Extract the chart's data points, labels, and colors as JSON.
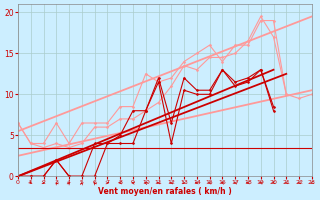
{
  "title": "",
  "xlabel": "Vent moyen/en rafales ( km/h )",
  "background_color": "#cceeff",
  "grid_color": "#aacccc",
  "xlim": [
    0,
    23
  ],
  "ylim": [
    0,
    21
  ],
  "yticks": [
    0,
    5,
    10,
    15,
    20
  ],
  "xticks": [
    0,
    1,
    2,
    3,
    4,
    5,
    6,
    7,
    8,
    9,
    10,
    11,
    12,
    13,
    14,
    15,
    16,
    17,
    18,
    19,
    20,
    21,
    22,
    23
  ],
  "red_line1": {
    "x": [
      0,
      1,
      2,
      3,
      4,
      5,
      6,
      7,
      8,
      9,
      10,
      11,
      12,
      13,
      14,
      15,
      16,
      17,
      18,
      19,
      20
    ],
    "y": [
      0,
      0,
      0,
      2,
      0,
      0,
      0,
      4,
      4,
      4,
      8,
      11.5,
      4,
      10.5,
      10,
      10,
      13,
      11,
      11.5,
      13,
      8
    ],
    "color": "#cc0000",
    "lw": 0.8,
    "marker": "D",
    "ms": 1.5
  },
  "red_line2": {
    "x": [
      0,
      1,
      2,
      3,
      4,
      5,
      6,
      7,
      8,
      9,
      10,
      11,
      12,
      13,
      14,
      15,
      16,
      17,
      18,
      19,
      20
    ],
    "y": [
      0,
      0,
      0,
      2,
      0,
      0,
      4,
      4,
      5,
      8,
      8,
      12,
      6.5,
      12,
      10.5,
      10.5,
      13,
      11.5,
      12,
      13,
      8.5
    ],
    "color": "#cc0000",
    "lw": 0.8,
    "marker": "D",
    "ms": 1.5
  },
  "red_flat_line": {
    "x": [
      0,
      23
    ],
    "y": [
      3.5,
      3.5
    ],
    "color": "#cc0000",
    "lw": 0.8
  },
  "red_reg1": {
    "x": [
      0,
      20
    ],
    "y": [
      0,
      13
    ],
    "color": "#cc0000",
    "lw": 1.3
  },
  "red_reg2": {
    "x": [
      0,
      21
    ],
    "y": [
      0,
      12.5
    ],
    "color": "#cc0000",
    "lw": 1.3
  },
  "pink_line1": {
    "x": [
      0,
      1,
      2,
      3,
      4,
      5,
      6,
      7,
      8,
      9,
      10,
      11,
      12,
      13,
      14,
      15,
      16,
      17,
      18,
      19,
      20,
      21
    ],
    "y": [
      6.5,
      4,
      4,
      6.5,
      4,
      6.5,
      6.5,
      6.5,
      8.5,
      8.5,
      12.5,
      11.5,
      12,
      14,
      15,
      16,
      14,
      16,
      16,
      19,
      19,
      10
    ],
    "color": "#ff9999",
    "lw": 0.8,
    "marker": "D",
    "ms": 1.5
  },
  "pink_line2": {
    "x": [
      0,
      1,
      2,
      3,
      4,
      5,
      6,
      7,
      8,
      9,
      10,
      11,
      12,
      13,
      14,
      15,
      16,
      17,
      18,
      19,
      20,
      21,
      22,
      23
    ],
    "y": [
      6.5,
      4,
      3.5,
      4,
      3.5,
      4,
      6,
      6,
      7,
      7,
      8,
      9,
      11,
      13.5,
      13,
      14.5,
      14.5,
      15,
      16.5,
      19.5,
      17,
      10,
      9.5,
      10
    ],
    "color": "#ff9999",
    "lw": 0.8,
    "marker": "D",
    "ms": 1.5
  },
  "pink_reg1": {
    "x": [
      0,
      23
    ],
    "y": [
      5.5,
      19.5
    ],
    "color": "#ff9999",
    "lw": 1.3
  },
  "pink_reg2": {
    "x": [
      0,
      23
    ],
    "y": [
      2.5,
      10.5
    ],
    "color": "#ff9999",
    "lw": 1.3
  },
  "arrows": {
    "x": [
      1,
      2,
      3,
      4,
      5,
      6,
      7,
      8,
      9,
      10,
      11,
      12,
      13,
      14,
      15,
      16,
      17,
      18,
      19,
      20,
      21,
      22,
      23
    ],
    "dirs": [
      45,
      80,
      200,
      160,
      170,
      200,
      90,
      270,
      250,
      230,
      270,
      270,
      80,
      270,
      260,
      250,
      260,
      270,
      260,
      280,
      280,
      280,
      300
    ],
    "color": "#cc0000"
  }
}
